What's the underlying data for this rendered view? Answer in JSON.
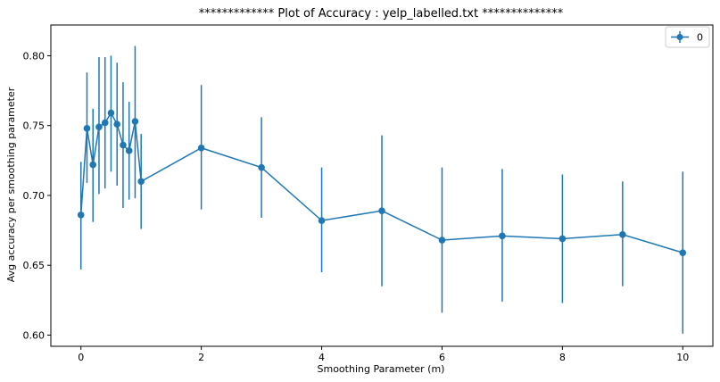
{
  "chart_data": {
    "type": "line",
    "title": "************* Plot of Accuracy : yelp_labelled.txt **************",
    "xlabel": "Smoothing Parameter (m)",
    "ylabel": "Avg accuracy per smoothing parameter",
    "xlim": [
      -0.5,
      10.5
    ],
    "ylim": [
      0.592,
      0.822
    ],
    "x_ticks": [
      0,
      2,
      4,
      6,
      8,
      10
    ],
    "y_ticks": [
      0.6,
      0.65,
      0.7,
      0.75,
      0.8
    ],
    "grid": false,
    "legend": {
      "position": "top-right",
      "entries": [
        "0"
      ]
    },
    "series_color": "#1f77b4",
    "series": [
      {
        "name": "0",
        "x": [
          0,
          0.1,
          0.2,
          0.3,
          0.4,
          0.5,
          0.6,
          0.7,
          0.8,
          0.9,
          1,
          2,
          3,
          4,
          5,
          6,
          7,
          8,
          9,
          10
        ],
        "y": [
          0.686,
          0.748,
          0.722,
          0.749,
          0.752,
          0.759,
          0.751,
          0.736,
          0.732,
          0.753,
          0.71,
          0.734,
          0.72,
          0.682,
          0.689,
          0.668,
          0.671,
          0.669,
          0.672,
          0.659
        ],
        "err_low": [
          0.647,
          0.709,
          0.681,
          0.701,
          0.705,
          0.717,
          0.707,
          0.691,
          0.697,
          0.698,
          0.676,
          0.69,
          0.684,
          0.645,
          0.635,
          0.616,
          0.624,
          0.623,
          0.635,
          0.601
        ],
        "err_high": [
          0.724,
          0.788,
          0.762,
          0.799,
          0.799,
          0.8,
          0.795,
          0.781,
          0.767,
          0.807,
          0.744,
          0.779,
          0.756,
          0.72,
          0.743,
          0.72,
          0.719,
          0.715,
          0.71,
          0.717
        ]
      }
    ]
  }
}
